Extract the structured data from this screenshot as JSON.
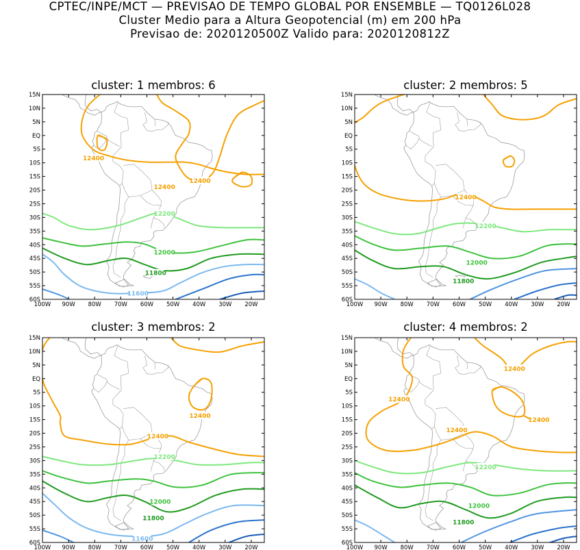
{
  "header": {
    "line1": "CPTEC/INPE/MCT — PREVISAO DE TEMPO GLOBAL POR ENSEMBLE — TQ0126L028",
    "line2": "Cluster Medio para a Altura Geopotencial (m) em 200 hPa",
    "line3": "Previsao de: 2020120500Z    Valido para: 2020120812Z"
  },
  "axes": {
    "lat_labels": [
      "15N",
      "10N",
      "5N",
      "EQ",
      "5S",
      "10S",
      "15S",
      "20S",
      "25S",
      "30S",
      "35S",
      "40S",
      "45S",
      "50S",
      "55S",
      "60S"
    ],
    "lon_labels": [
      "100W",
      "90W",
      "80W",
      "70W",
      "60W",
      "50W",
      "40W",
      "30W",
      "20W"
    ]
  },
  "colors": {
    "12400": "#f5a000",
    "12200": "#7de87d",
    "12000": "#3cc13c",
    "11800": "#1e9a1e",
    "11600": "#7ab8ef",
    "blue1": "#4d94e0",
    "blue2": "#2a72cc",
    "blue3": "#1a5cb8",
    "coast": "#9a9a9a"
  },
  "clusters": [
    {
      "title": "cluster: 1   membros: 6",
      "labels": [
        "12400",
        "12400",
        "12400",
        "12200",
        "12000",
        "11800",
        "11600"
      ]
    },
    {
      "title": "cluster: 2   membros: 5",
      "labels": [
        "12400",
        "12200",
        "12000",
        "11800"
      ]
    },
    {
      "title": "cluster: 3   membros: 2",
      "labels": [
        "12400",
        "12400",
        "12200",
        "12000",
        "11800",
        "11600"
      ]
    },
    {
      "title": "cluster: 4   membros: 2",
      "labels": [
        "12400",
        "12400",
        "12400",
        "12400",
        "12200",
        "12000",
        "11800"
      ]
    }
  ]
}
